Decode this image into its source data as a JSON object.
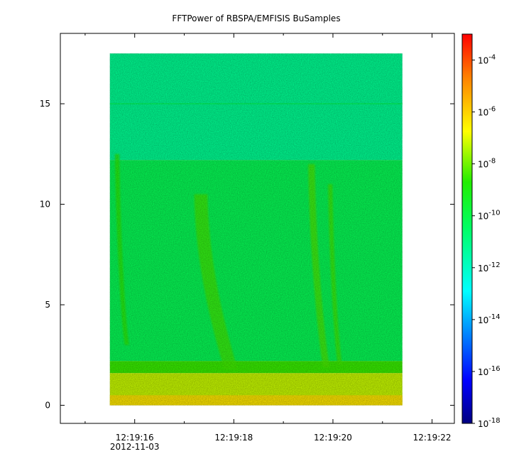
{
  "chart_data": {
    "type": "heatmap",
    "title": "FFTPower of RBSPA/EMFISIS  BuSamples",
    "xlabel": "",
    "ylabel": "",
    "x_tick_labels": [
      "12:19:16",
      "12:19:18",
      "12:19:20",
      "12:19:22"
    ],
    "x_date_label": "2012-11-03",
    "x_start": "12:19:15.5",
    "x_end": "12:19:21.4",
    "y_ticks": [
      0,
      5,
      10,
      15
    ],
    "ylim": [
      -0.9,
      18.5
    ],
    "data_y_range": [
      0,
      17.5
    ],
    "colorbar": {
      "scale": "log",
      "range": [
        1e-18,
        0.001
      ],
      "tick_labels": [
        {
          "base": "10",
          "exp": "-4",
          "value": -4
        },
        {
          "base": "10",
          "exp": "-6",
          "value": -6
        },
        {
          "base": "10",
          "exp": "-8",
          "value": -8
        },
        {
          "base": "10",
          "exp": "-10",
          "value": -10
        },
        {
          "base": "10",
          "exp": "-12",
          "value": -12
        },
        {
          "base": "10",
          "exp": "-14",
          "value": -14
        },
        {
          "base": "10",
          "exp": "-16",
          "value": -16
        },
        {
          "base": "10",
          "exp": "-18",
          "value": -18
        }
      ]
    },
    "bands": [
      {
        "y_from": 12.2,
        "y_to": 17.5,
        "log_power": -11.2
      },
      {
        "y_from": 2.2,
        "y_to": 12.2,
        "log_power": -10.2
      },
      {
        "y_from": 1.6,
        "y_to": 2.2,
        "log_power": -8.5
      },
      {
        "y_from": 0,
        "y_to": 1.6,
        "log_power": -7.2
      }
    ],
    "features": [
      {
        "kind": "chorus-streak",
        "x_from": "12:19:15.6",
        "x_to": "12:19:15.8",
        "y_top": 12.5,
        "y_bottom": 3.0,
        "log_power": -8.6
      },
      {
        "kind": "chorus-streak",
        "x_from": "12:19:17.2",
        "x_to": "12:19:17.8",
        "y_top": 10.5,
        "y_bottom": 1.8,
        "log_power": -8.4
      },
      {
        "kind": "chorus-streak",
        "x_from": "12:19:19.5",
        "x_to": "12:19:19.8",
        "y_top": 12.0,
        "y_bottom": 1.9,
        "log_power": -8.3
      },
      {
        "kind": "chorus-streak",
        "x_from": "12:19:19.9",
        "x_to": "12:19:20.1",
        "y_top": 11.0,
        "y_bottom": 2.0,
        "log_power": -8.4
      }
    ],
    "horizontal_line": {
      "y": 15.0,
      "log_power": -10.6
    }
  }
}
